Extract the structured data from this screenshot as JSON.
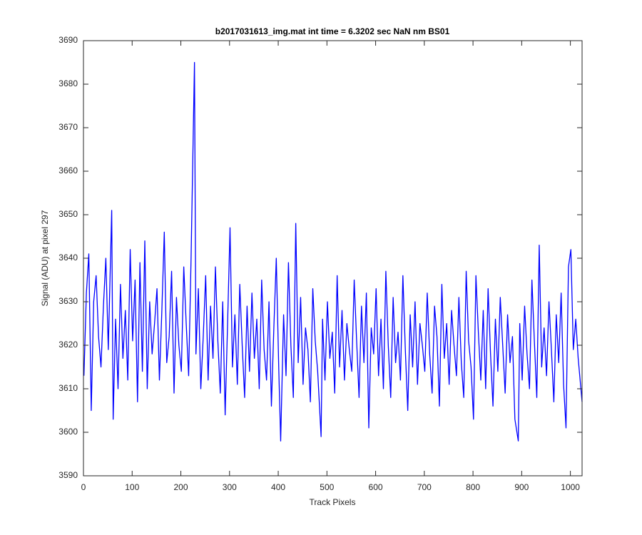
{
  "chart_data": {
    "type": "line",
    "title": "b2017031613_img.mat int time = 6.3202 sec  NaN nm BS01",
    "x_label": "Track Pixels",
    "y_label": "Signal (ADU) at pixel 297",
    "xlim": [
      0,
      1024
    ],
    "ylim": [
      3590,
      3690
    ],
    "xticks": [
      0,
      100,
      200,
      300,
      400,
      500,
      600,
      700,
      800,
      900,
      1000
    ],
    "yticks": [
      3590,
      3600,
      3610,
      3620,
      3630,
      3640,
      3650,
      3660,
      3670,
      3680,
      3690
    ],
    "grid": false,
    "color": "#0000ff",
    "x": [
      1,
      6,
      11,
      16,
      21,
      26,
      31,
      36,
      41,
      46,
      51,
      58,
      61,
      66,
      71,
      76,
      81,
      86,
      91,
      96,
      101,
      106,
      111,
      116,
      121,
      126,
      131,
      136,
      141,
      146,
      151,
      156,
      161,
      166,
      171,
      176,
      181,
      186,
      191,
      196,
      201,
      206,
      211,
      216,
      221,
      228,
      231,
      236,
      241,
      246,
      251,
      256,
      261,
      266,
      271,
      276,
      281,
      286,
      291,
      296,
      301,
      306,
      311,
      316,
      321,
      326,
      331,
      336,
      341,
      346,
      351,
      356,
      361,
      366,
      371,
      376,
      381,
      386,
      391,
      396,
      401,
      405,
      411,
      416,
      421,
      426,
      431,
      436,
      441,
      446,
      451,
      456,
      461,
      466,
      471,
      476,
      481,
      488,
      491,
      496,
      501,
      506,
      511,
      516,
      521,
      526,
      531,
      536,
      541,
      546,
      551,
      556,
      561,
      566,
      571,
      576,
      581,
      586,
      591,
      596,
      601,
      606,
      611,
      616,
      621,
      626,
      631,
      636,
      641,
      646,
      651,
      656,
      661,
      666,
      671,
      676,
      681,
      686,
      691,
      696,
      701,
      706,
      711,
      716,
      721,
      726,
      731,
      736,
      741,
      746,
      751,
      756,
      761,
      766,
      771,
      776,
      781,
      786,
      791,
      796,
      801,
      806,
      811,
      816,
      821,
      826,
      831,
      836,
      841,
      846,
      851,
      856,
      861,
      866,
      871,
      876,
      881,
      886,
      893,
      896,
      901,
      906,
      911,
      916,
      921,
      926,
      931,
      936,
      941,
      946,
      951,
      956,
      961,
      966,
      971,
      976,
      981,
      986,
      991,
      996,
      1001,
      1006,
      1011,
      1016,
      1024
    ],
    "values": [
      3613,
      3632,
      3641,
      3605,
      3630,
      3636,
      3622,
      3615,
      3629,
      3640,
      3619,
      3651,
      3603,
      3626,
      3610,
      3634,
      3617,
      3628,
      3612,
      3642,
      3621,
      3635,
      3607,
      3639,
      3614,
      3644,
      3610,
      3630,
      3618,
      3625,
      3633,
      3612,
      3628,
      3646,
      3616,
      3622,
      3637,
      3609,
      3631,
      3620,
      3614,
      3638,
      3625,
      3613,
      3640,
      3685,
      3618,
      3633,
      3610,
      3622,
      3636,
      3612,
      3629,
      3617,
      3638,
      3621,
      3609,
      3630,
      3604,
      3625,
      3647,
      3615,
      3627,
      3611,
      3634,
      3620,
      3608,
      3629,
      3614,
      3632,
      3617,
      3626,
      3610,
      3635,
      3619,
      3612,
      3630,
      3606,
      3624,
      3640,
      3615,
      3598,
      3627,
      3613,
      3639,
      3620,
      3608,
      3648,
      3616,
      3631,
      3611,
      3624,
      3619,
      3607,
      3633,
      3621,
      3614,
      3599,
      3626,
      3612,
      3630,
      3617,
      3623,
      3609,
      3636,
      3615,
      3628,
      3612,
      3625,
      3619,
      3614,
      3635,
      3621,
      3608,
      3629,
      3616,
      3632,
      3601,
      3624,
      3618,
      3633,
      3613,
      3626,
      3610,
      3637,
      3620,
      3608,
      3631,
      3616,
      3623,
      3612,
      3636,
      3619,
      3605,
      3627,
      3615,
      3630,
      3611,
      3625,
      3620,
      3614,
      3632,
      3618,
      3609,
      3629,
      3622,
      3606,
      3634,
      3617,
      3625,
      3611,
      3628,
      3620,
      3613,
      3631,
      3616,
      3608,
      3637,
      3621,
      3615,
      3603,
      3636,
      3623,
      3612,
      3628,
      3610,
      3633,
      3618,
      3606,
      3626,
      3614,
      3631,
      3620,
      3609,
      3627,
      3616,
      3622,
      3603,
      3598,
      3625,
      3612,
      3629,
      3618,
      3610,
      3635,
      3621,
      3608,
      3643,
      3615,
      3624,
      3613,
      3630,
      3619,
      3607,
      3627,
      3616,
      3632,
      3611,
      3601,
      3638,
      3642,
      3619,
      3626,
      3617,
      3607
    ]
  }
}
